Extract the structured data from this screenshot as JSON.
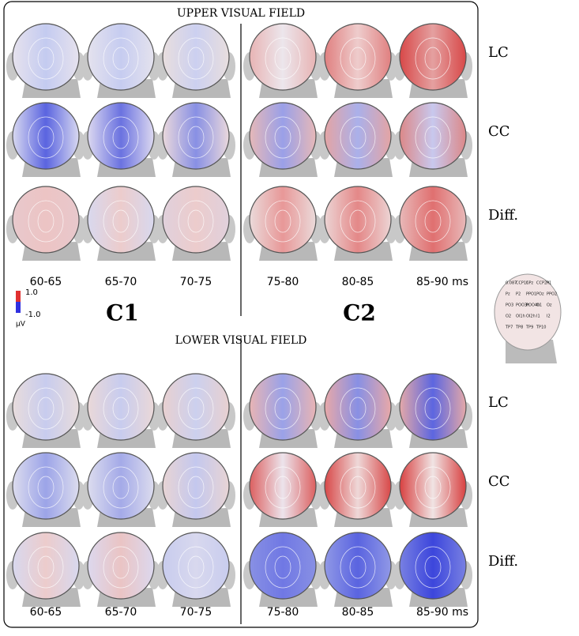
{
  "upper": {
    "title": "UPPER VISUAL FIELD",
    "rows": [
      "LC",
      "CC",
      "Diff."
    ],
    "times": [
      "60-65",
      "65-70",
      "70-75",
      "75-80",
      "80-85",
      "85-90 ms"
    ]
  },
  "lower": {
    "title": "LOWER VISUAL FIELD",
    "rows": [
      "LC",
      "CC",
      "Diff."
    ],
    "times": [
      "60-65",
      "65-70",
      "70-75",
      "75-80",
      "80-85",
      "85-90 ms"
    ]
  },
  "colorbar": {
    "max": "1.0",
    "min": "-1.0",
    "unit": "µV"
  },
  "components": [
    "C1",
    "C2"
  ],
  "electrode_map": {
    "labels": [
      "0.087",
      "CCP1h",
      "CPz",
      "CCP2h",
      "P1",
      "Pz",
      "P2",
      "PPO1",
      "POz",
      "PPO2",
      "PO3",
      "POO3h",
      "POO4h",
      "O1",
      "Oz",
      "O2",
      "OI1h",
      "OI2h",
      "I1",
      "I2",
      "TP7",
      "TP8",
      "TP9",
      "TP10"
    ]
  }
}
